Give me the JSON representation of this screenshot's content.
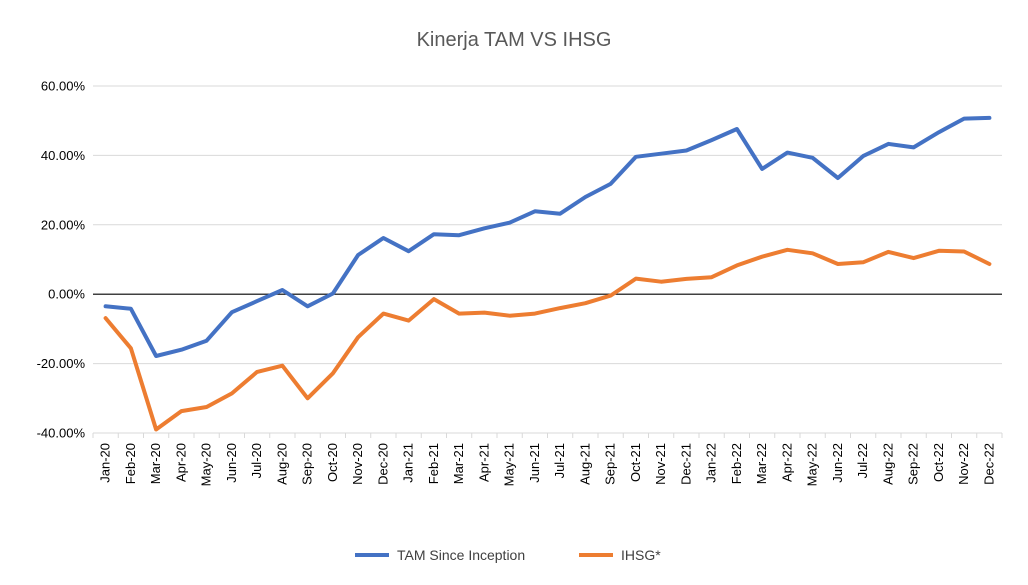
{
  "chart_data": {
    "type": "line",
    "title": "Kinerja TAM VS IHSG",
    "xlabel": "",
    "ylabel": "",
    "ylim": [
      -40,
      60
    ],
    "yticks": [
      {
        "value": 60,
        "label": "60.00%"
      },
      {
        "value": 40,
        "label": "40.00%"
      },
      {
        "value": 20,
        "label": "20.00%"
      },
      {
        "value": 0,
        "label": "0.00%"
      },
      {
        "value": -20,
        "label": "-20.00%"
      },
      {
        "value": -40,
        "label": "-40.00%"
      }
    ],
    "grid": true,
    "legend_position": "bottom",
    "categories": [
      "Jan-20",
      "Feb-20",
      "Mar-20",
      "Apr-20",
      "May-20",
      "Jun-20",
      "Jul-20",
      "Aug-20",
      "Sep-20",
      "Oct-20",
      "Nov-20",
      "Dec-20",
      "Jan-21",
      "Feb-21",
      "Mar-21",
      "Apr-21",
      "May-21",
      "Jun-21",
      "Jul-21",
      "Aug-21",
      "Sep-21",
      "Oct-21",
      "Nov-21",
      "Dec-21",
      "Jan-22",
      "Feb-22",
      "Mar-22",
      "Apr-22",
      "May-22",
      "Jun-22",
      "Jul-22",
      "Aug-22",
      "Sep-22",
      "Oct-22",
      "Nov-22",
      "Dec-22"
    ],
    "series": [
      {
        "name": "TAM Since Inception",
        "color": "#4472C4",
        "values": [
          -3.5,
          -4.2,
          -17.8,
          -16.0,
          -13.4,
          -5.2,
          -2.0,
          1.2,
          -3.5,
          0.2,
          11.3,
          16.2,
          12.4,
          17.3,
          17.0,
          19.0,
          20.6,
          23.9,
          23.2,
          28.0,
          31.8,
          39.6,
          40.5,
          41.4,
          44.4,
          47.6,
          36.1,
          40.8,
          39.3,
          33.5,
          39.8,
          43.3,
          42.3,
          46.7,
          50.6,
          50.8
        ]
      },
      {
        "name": "IHSG*",
        "color": "#ED7D31",
        "values": [
          -6.9,
          -15.6,
          -39.0,
          -33.7,
          -32.5,
          -28.6,
          -22.4,
          -20.6,
          -30.0,
          -22.8,
          -12.4,
          -5.6,
          -7.6,
          -1.4,
          -5.6,
          -5.3,
          -6.2,
          -5.6,
          -4.0,
          -2.6,
          -0.4,
          4.5,
          3.6,
          4.4,
          4.9,
          8.3,
          10.8,
          12.8,
          11.8,
          8.7,
          9.2,
          12.2,
          10.4,
          12.5,
          12.3,
          8.7
        ]
      }
    ]
  }
}
